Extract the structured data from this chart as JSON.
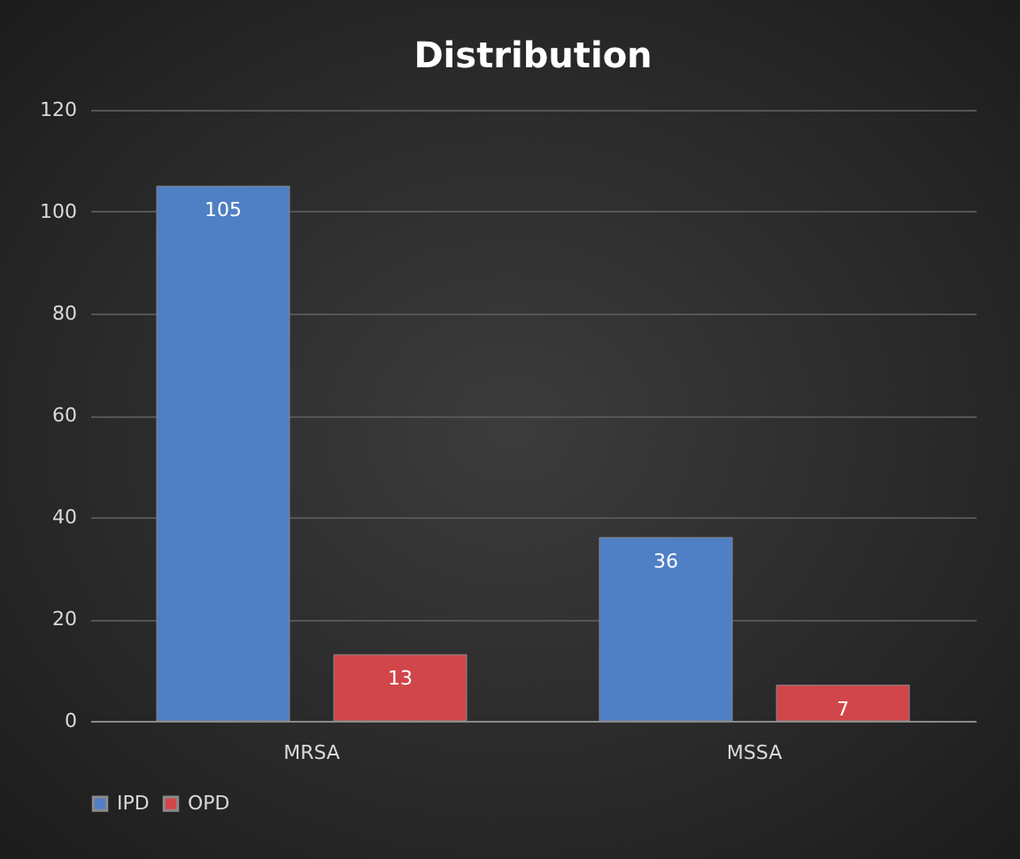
{
  "chart_data": {
    "type": "bar",
    "title": "Distribution",
    "categories": [
      "MRSA",
      "MSSA"
    ],
    "series": [
      {
        "name": "IPD",
        "color": "#4f7fc4",
        "values": [
          105,
          36
        ]
      },
      {
        "name": "OPD",
        "color": "#d0464a",
        "values": [
          13,
          7
        ]
      }
    ],
    "ylim": [
      0,
      120
    ],
    "yticks": [
      0,
      20,
      40,
      60,
      80,
      100,
      120
    ],
    "grid": "y",
    "legend": "bottom",
    "data_labels": true
  }
}
